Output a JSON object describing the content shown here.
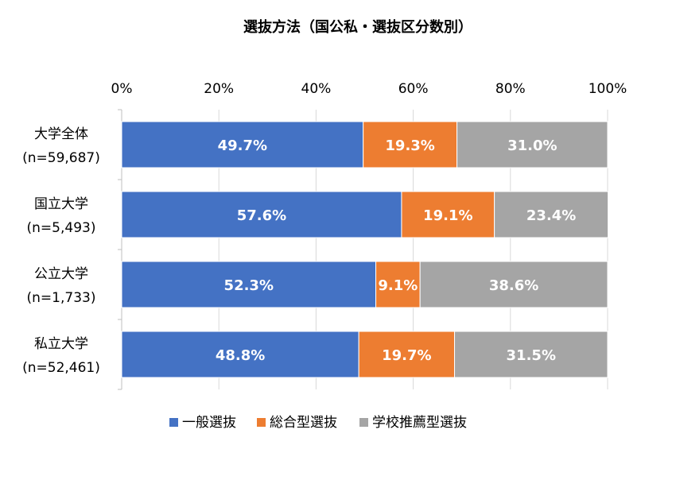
{
  "chart_data": {
    "type": "bar",
    "orientation": "horizontal",
    "stacked": true,
    "percent_stacked": true,
    "title": "選抜方法（国公私・選抜区分数別）",
    "categories": [
      {
        "name": "大学全体",
        "n": "(n=59,687)"
      },
      {
        "name": "国立大学",
        "n": "(n=5,493)"
      },
      {
        "name": "公立大学",
        "n": "(n=1,733)"
      },
      {
        "name": "私立大学",
        "n": "(n=52,461)"
      }
    ],
    "series": [
      {
        "name": "一般選抜",
        "color": "#4472C4",
        "values": [
          49.7,
          57.6,
          52.3,
          48.8
        ],
        "labels": [
          "49.7%",
          "57.6%",
          "52.3%",
          "48.8%"
        ]
      },
      {
        "name": "総合型選抜",
        "color": "#ED7D31",
        "values": [
          19.3,
          19.1,
          9.1,
          19.7
        ],
        "labels": [
          "19.3%",
          "19.1%",
          "9.1%",
          "19.7%"
        ]
      },
      {
        "name": "学校推薦型選抜",
        "color": "#A5A5A5",
        "values": [
          31.0,
          23.4,
          38.6,
          31.5
        ],
        "labels": [
          "31.0%",
          "23.4%",
          "38.6%",
          "31.5%"
        ]
      }
    ],
    "x_axis": {
      "range": [
        0,
        100
      ],
      "ticks": [
        "0%",
        "20%",
        "40%",
        "60%",
        "80%",
        "100%"
      ],
      "position": "top"
    },
    "grid": true,
    "legend": "bottom"
  }
}
